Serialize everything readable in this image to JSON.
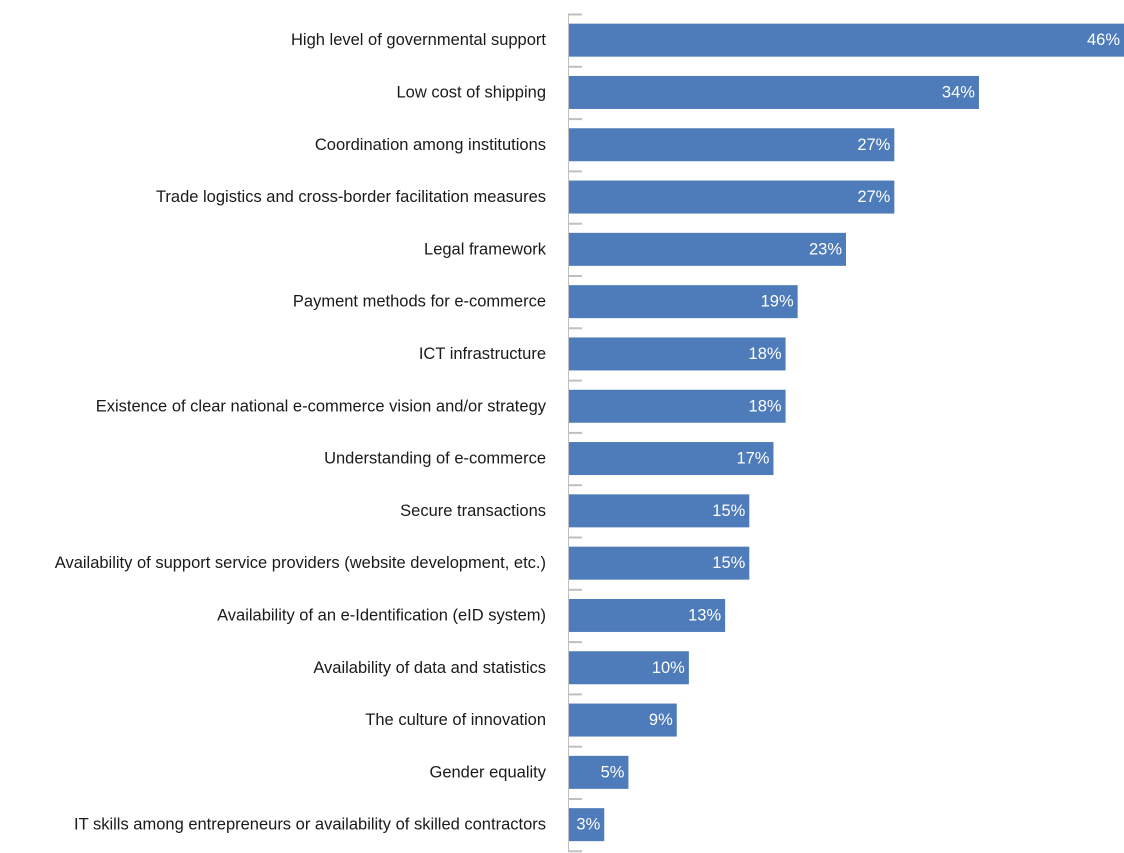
{
  "chart_data": {
    "type": "bar",
    "orientation": "horizontal",
    "categories": [
      "High level of governmental support",
      "Low cost of shipping",
      "Coordination among institutions",
      "Trade logistics and cross-border facilitation measures",
      "Legal framework",
      "Payment methods for e-commerce",
      "ICT infrastructure",
      "Existence of clear national e-commerce vision and/or strategy",
      "Understanding of e-commerce",
      "Secure transactions",
      "Availability of support service providers (website development, etc.)",
      "Availability of an e-Identification (eID system)",
      "Availability of data and statistics",
      "The culture of innovation",
      "Gender equality",
      "IT skills among entrepreneurs or availability of skilled contractors"
    ],
    "values": [
      46,
      34,
      27,
      27,
      23,
      19,
      18,
      18,
      17,
      15,
      15,
      13,
      10,
      9,
      5,
      3
    ],
    "data_labels": [
      "46%",
      "34%",
      "27%",
      "27%",
      "23%",
      "19%",
      "18%",
      "18%",
      "17%",
      "15%",
      "15%",
      "13%",
      "10%",
      "9%",
      "5%",
      "3%"
    ],
    "xlim": [
      0,
      46
    ],
    "grid": false,
    "legend": "none",
    "colors": {
      "bar": "#4e7bba",
      "axis": "#bfbfbf"
    }
  }
}
